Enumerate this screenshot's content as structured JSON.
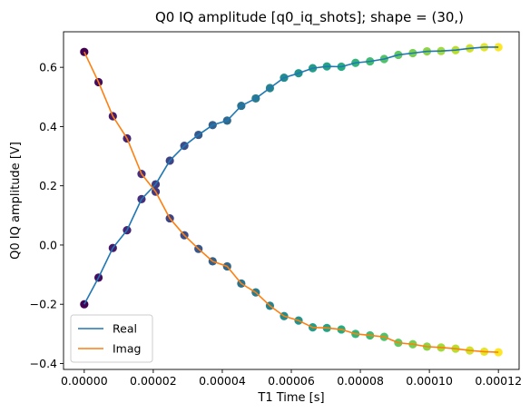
{
  "chart_data": {
    "type": "line",
    "title": "Q0 IQ amplitude [q0_iq_shots]; shape = (30,)",
    "xlabel": "T1 Time [s]",
    "ylabel": "Q0 IQ amplitude [V]",
    "xlim": [
      -6e-06,
      0.000126
    ],
    "ylim": [
      -0.42,
      0.72
    ],
    "xticks": [
      "0.00000",
      "0.00002",
      "0.00004",
      "0.00006",
      "0.00008",
      "0.00010",
      "0.00012"
    ],
    "xtick_values": [
      0,
      2e-05,
      4e-05,
      6e-05,
      8e-05,
      0.0001,
      0.00012
    ],
    "yticks": [
      "−0.4",
      "−0.2",
      "0.0",
      "0.2",
      "0.4",
      "0.6"
    ],
    "ytick_values": [
      -0.4,
      -0.2,
      0.0,
      0.2,
      0.4,
      0.6
    ],
    "grid": false,
    "legend_placement": "bottom-left",
    "colormap": "viridis",
    "x": [
      0,
      4.14e-06,
      8.28e-06,
      1.24e-05,
      1.66e-05,
      2.07e-05,
      2.48e-05,
      2.9e-05,
      3.31e-05,
      3.72e-05,
      4.14e-05,
      4.55e-05,
      4.97e-05,
      5.38e-05,
      5.79e-05,
      6.21e-05,
      6.62e-05,
      7.03e-05,
      7.45e-05,
      7.86e-05,
      8.28e-05,
      8.69e-05,
      9.1e-05,
      9.52e-05,
      9.93e-05,
      0.0001034,
      0.0001076,
      0.0001117,
      0.0001159,
      0.00012
    ],
    "series": [
      {
        "name": "Real",
        "color": "#1f77b4",
        "values": [
          -0.2,
          -0.11,
          -0.01,
          0.05,
          0.155,
          0.205,
          0.285,
          0.335,
          0.372,
          0.405,
          0.42,
          0.47,
          0.495,
          0.53,
          0.565,
          0.58,
          0.597,
          0.603,
          0.602,
          0.615,
          0.62,
          0.628,
          0.642,
          0.648,
          0.654,
          0.655,
          0.658,
          0.664,
          0.668,
          0.668
        ]
      },
      {
        "name": "Imag",
        "color": "#ff7f0e",
        "values": [
          0.652,
          0.55,
          0.435,
          0.36,
          0.24,
          0.18,
          0.09,
          0.033,
          -0.013,
          -0.055,
          -0.072,
          -0.13,
          -0.16,
          -0.205,
          -0.24,
          -0.255,
          -0.278,
          -0.28,
          -0.285,
          -0.3,
          -0.305,
          -0.31,
          -0.33,
          -0.335,
          -0.343,
          -0.346,
          -0.35,
          -0.356,
          -0.36,
          -0.362
        ]
      }
    ]
  }
}
